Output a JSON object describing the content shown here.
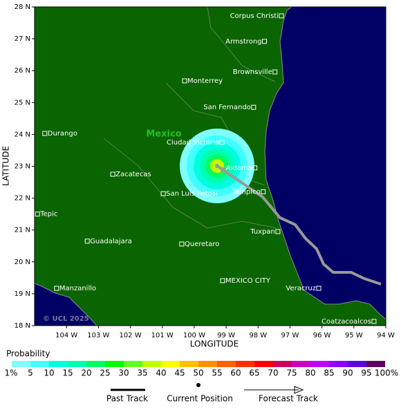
{
  "map": {
    "lonlim": [
      -105,
      -94
    ],
    "latlim": [
      18,
      28
    ],
    "xticks": [
      {
        "value": -104,
        "label": "104 W"
      },
      {
        "value": -103,
        "label": "103 W"
      },
      {
        "value": -102,
        "label": "102 W"
      },
      {
        "value": -101,
        "label": "101 W"
      },
      {
        "value": -100,
        "label": "100 W"
      },
      {
        "value": -99,
        "label": "99 W"
      },
      {
        "value": -98,
        "label": "98 W"
      },
      {
        "value": -97,
        "label": "97 W"
      },
      {
        "value": -96,
        "label": "96 W"
      },
      {
        "value": -95,
        "label": "95 W"
      },
      {
        "value": -94,
        "label": "94 W"
      }
    ],
    "yticks": [
      {
        "value": 18,
        "label": "18 N"
      },
      {
        "value": 19,
        "label": "19 N"
      },
      {
        "value": 20,
        "label": "20 N"
      },
      {
        "value": 21,
        "label": "21 N"
      },
      {
        "value": 22,
        "label": "22 N"
      },
      {
        "value": 23,
        "label": "23 N"
      },
      {
        "value": 24,
        "label": "24 N"
      },
      {
        "value": 25,
        "label": "25 N"
      },
      {
        "value": 26,
        "label": "26 N"
      },
      {
        "value": 27,
        "label": "27 N"
      },
      {
        "value": 28,
        "label": "28 N"
      }
    ],
    "xlabel": "LONGITUDE",
    "ylabel": "LATITUDE",
    "country_label": "Mexico",
    "copyright": "© UCL 2025",
    "cities": [
      {
        "name": "Corpus Christi",
        "lon": -97.27,
        "lat": 27.72
      },
      {
        "name": "Armstrong",
        "lon": -97.8,
        "lat": 26.92
      },
      {
        "name": "Brownsville",
        "lon": -97.47,
        "lat": 25.96
      },
      {
        "name": "Monterrey",
        "lon": -100.3,
        "lat": 25.68
      },
      {
        "name": "San Fernando",
        "lon": -98.14,
        "lat": 24.85
      },
      {
        "name": "Durango",
        "lon": -104.68,
        "lat": 24.03
      },
      {
        "name": "Ciudad Victoria",
        "lon": -99.13,
        "lat": 23.75
      },
      {
        "name": "Aldama",
        "lon": -98.1,
        "lat": 22.95
      },
      {
        "name": "Zacatecas",
        "lon": -102.55,
        "lat": 22.75
      },
      {
        "name": "San Luis Potosi",
        "lon": -100.97,
        "lat": 22.14
      },
      {
        "name": "Tampico",
        "lon": -97.84,
        "lat": 22.2
      },
      {
        "name": "Tepic",
        "lon": -104.91,
        "lat": 21.5
      },
      {
        "name": "Tuxpan",
        "lon": -97.38,
        "lat": 20.95
      },
      {
        "name": "Guadalajara",
        "lon": -103.35,
        "lat": 20.65
      },
      {
        "name": "Queretaro",
        "lon": -100.39,
        "lat": 20.56
      },
      {
        "name": "MEXICO CITY",
        "lon": -99.11,
        "lat": 19.41
      },
      {
        "name": "Manzanillo",
        "lon": -104.31,
        "lat": 19.17
      },
      {
        "name": "Veracruz",
        "lon": -96.1,
        "lat": 19.17
      },
      {
        "name": "Coatzacoalcos",
        "lon": -94.37,
        "lat": 18.13
      }
    ]
  },
  "legend": {
    "title": "Probability",
    "labels": [
      "1%",
      "5",
      "10",
      "15",
      "20",
      "25",
      "30",
      "35",
      "40",
      "45",
      "50",
      "55",
      "60",
      "65",
      "70",
      "75",
      "80",
      "85",
      "90",
      "95",
      "100%"
    ],
    "colors": [
      "#80ffff",
      "#40ffff",
      "#00ffe0",
      "#00ffb0",
      "#00ff60",
      "#00ff00",
      "#60ff20",
      "#c0ff00",
      "#ffff00",
      "#ffc000",
      "#ff9000",
      "#ff6000",
      "#ff3000",
      "#ff0000",
      "#d00060",
      "#d000c0",
      "#c000ff",
      "#9000ff",
      "#6000e0",
      "#600060"
    ],
    "past_track": "Past Track",
    "current_position": "Current Position",
    "forecast_track": "Forecast Track"
  }
}
